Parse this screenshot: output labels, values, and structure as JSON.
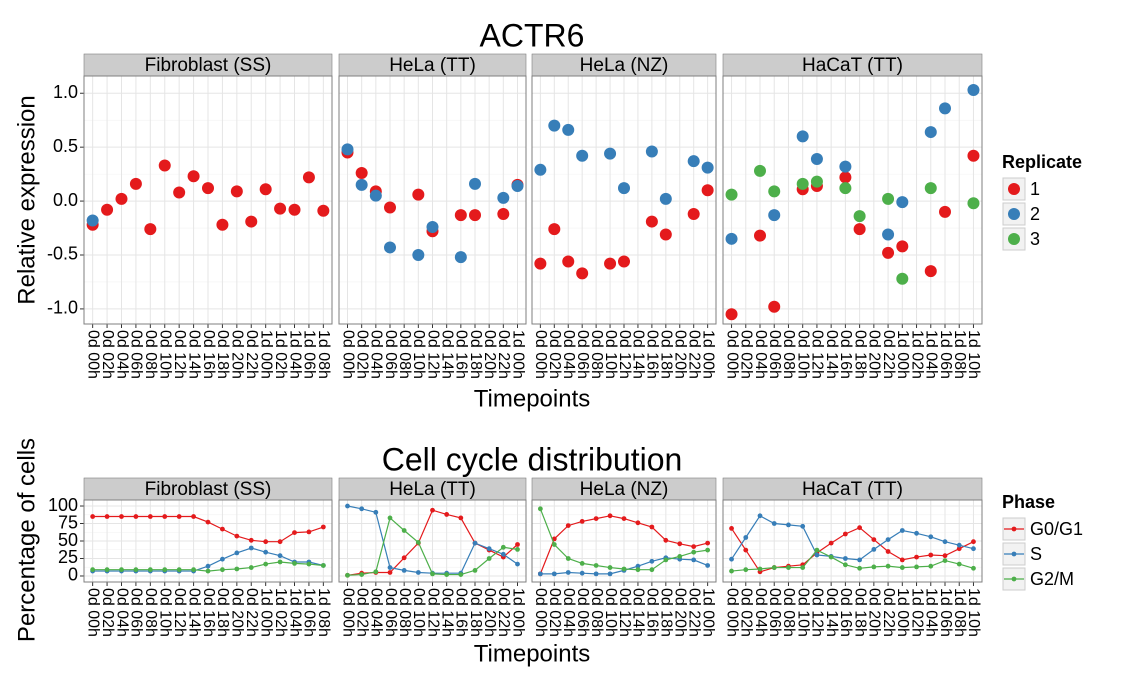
{
  "chart_data": [
    {
      "type": "scatter",
      "title": "ACTR6",
      "xlabel": "Timepoints",
      "ylabel": "Relative expression",
      "ylim": [
        -1.14,
        1.16
      ],
      "yticks": [
        {
          "value": -1,
          "label": "-1.0"
        },
        {
          "value": -0.5,
          "label": "-0.5"
        },
        {
          "value": 0,
          "label": "0.0"
        },
        {
          "value": 0.5,
          "label": "0.5"
        },
        {
          "value": 1,
          "label": "1.0"
        }
      ],
      "grid": true,
      "legend_title": "Replicate",
      "series": [
        {
          "name": "1",
          "color": "#e41a1c"
        },
        {
          "name": "2",
          "color": "#377eb8"
        },
        {
          "name": "3",
          "color": "#4daf4a"
        }
      ],
      "panels": [
        {
          "title": "Fibroblast (SS)",
          "categories": [
            "0d 00h",
            "0d 02h",
            "0d 04h",
            "0d 06h",
            "0d 08h",
            "0d 10h",
            "0d 12h",
            "0d 14h",
            "0d 16h",
            "0d 18h",
            "0d 20h",
            "0d 22h",
            "1d 00h",
            "1d 02h",
            "1d 04h",
            "1d 06h",
            "1d 08h"
          ],
          "values": [
            [
              -0.22,
              -0.08,
              0.02,
              0.16,
              -0.26,
              0.33,
              0.08,
              0.23,
              0.12,
              -0.22,
              0.09,
              -0.19,
              0.11,
              -0.07,
              -0.08,
              0.22,
              -0.09
            ],
            [
              -0.18,
              null,
              null,
              null,
              null,
              null,
              null,
              null,
              null,
              null,
              null,
              null,
              null,
              null,
              null,
              null,
              null
            ],
            [
              null,
              null,
              null,
              null,
              null,
              null,
              null,
              null,
              null,
              null,
              null,
              null,
              null,
              null,
              null,
              null,
              null
            ]
          ]
        },
        {
          "title": "HeLa (TT)",
          "categories": [
            "0d 00h",
            "0d 02h",
            "0d 04h",
            "0d 06h",
            "0d 08h",
            "0d 10h",
            "0d 12h",
            "0d 14h",
            "0d 16h",
            "0d 18h",
            "0d 20h",
            "0d 22h",
            "1d 00h"
          ],
          "values": [
            [
              0.45,
              0.26,
              0.09,
              -0.06,
              null,
              0.06,
              -0.28,
              null,
              -0.13,
              -0.13,
              null,
              -0.12,
              0.15
            ],
            [
              0.48,
              0.15,
              0.05,
              -0.43,
              null,
              -0.5,
              -0.24,
              null,
              -0.52,
              0.16,
              null,
              0.03,
              0.14
            ],
            [
              null,
              null,
              null,
              null,
              null,
              null,
              null,
              null,
              null,
              null,
              null,
              null,
              null
            ]
          ]
        },
        {
          "title": "HeLa (NZ)",
          "categories": [
            "0d 00h",
            "0d 02h",
            "0d 04h",
            "0d 06h",
            "0d 08h",
            "0d 10h",
            "0d 12h",
            "0d 14h",
            "0d 16h",
            "0d 18h",
            "0d 20h",
            "0d 22h",
            "1d 00h"
          ],
          "values": [
            [
              -0.58,
              -0.26,
              -0.56,
              -0.67,
              null,
              -0.58,
              -0.56,
              null,
              -0.19,
              -0.31,
              null,
              -0.12,
              0.1
            ],
            [
              0.29,
              0.7,
              0.66,
              0.42,
              null,
              0.44,
              0.12,
              null,
              0.46,
              0.02,
              null,
              0.37,
              0.31
            ],
            [
              null,
              null,
              null,
              null,
              null,
              null,
              null,
              null,
              null,
              null,
              null,
              null,
              null
            ]
          ]
        },
        {
          "title": "HaCaT (TT)",
          "categories": [
            "0d 00h",
            "0d 02h",
            "0d 04h",
            "0d 06h",
            "0d 08h",
            "0d 10h",
            "0d 12h",
            "0d 14h",
            "0d 16h",
            "0d 18h",
            "0d 20h",
            "0d 22h",
            "1d 00h",
            "1d 02h",
            "1d 04h",
            "1d 06h",
            "1d 08h",
            "1d 10h"
          ],
          "values": [
            [
              -1.05,
              null,
              -0.32,
              -0.98,
              null,
              0.11,
              0.14,
              null,
              0.22,
              -0.26,
              null,
              -0.48,
              -0.42,
              null,
              -0.65,
              -0.1,
              null,
              0.42
            ],
            [
              -0.35,
              null,
              null,
              -0.13,
              null,
              0.6,
              0.39,
              null,
              0.32,
              null,
              null,
              -0.31,
              -0.01,
              null,
              0.64,
              0.86,
              null,
              1.03
            ],
            [
              0.06,
              null,
              0.28,
              0.09,
              null,
              0.16,
              0.18,
              null,
              0.12,
              -0.14,
              null,
              0.02,
              -0.72,
              null,
              0.12,
              null,
              null,
              -0.02
            ]
          ]
        }
      ]
    },
    {
      "type": "line",
      "title": "Cell cycle distribution",
      "xlabel": "Timepoints",
      "ylabel": "Percentage of cells",
      "ylim": [
        -8.6,
        108.6
      ],
      "yticks": [
        0,
        25,
        50,
        75,
        100
      ],
      "grid": true,
      "legend_title": "Phase",
      "series": [
        {
          "name": "G0/G1",
          "color": "#e41a1c"
        },
        {
          "name": "S",
          "color": "#377eb8"
        },
        {
          "name": "G2/M",
          "color": "#4daf4a"
        }
      ],
      "panels": [
        {
          "title": "Fibroblast (SS)",
          "categories": [
            "0d 00h",
            "0d 02h",
            "0d 04h",
            "0d 06h",
            "0d 08h",
            "0d 10h",
            "0d 12h",
            "0d 14h",
            "0d 16h",
            "0d 18h",
            "0d 20h",
            "0d 22h",
            "1d 00h",
            "1d 02h",
            "1d 04h",
            "1d 06h",
            "1d 08h"
          ],
          "values": [
            [
              85,
              85,
              85,
              85,
              85,
              85,
              85,
              85,
              77,
              67,
              57,
              51,
              49,
              49,
              62,
              63,
              70
            ],
            [
              7,
              7,
              7,
              7,
              7,
              7,
              7,
              7,
              14,
              24,
              33,
              40,
              34,
              29,
              20,
              20,
              15
            ],
            [
              9,
              9,
              9,
              9,
              9,
              9,
              9,
              9,
              7,
              9,
              10,
              12,
              17,
              20,
              18,
              17,
              15
            ]
          ]
        },
        {
          "title": "HeLa (TT)",
          "categories": [
            "0d 00h",
            "0d 02h",
            "0d 04h",
            "0d 06h",
            "0d 08h",
            "0d 10h",
            "0d 12h",
            "0d 14h",
            "0d 16h",
            "0d 18h",
            "0d 20h",
            "0d 22h",
            "1d 00h"
          ],
          "values": [
            [
              1,
              4,
              5,
              5,
              26,
              47,
              94,
              88,
              83,
              47,
              37,
              27,
              45
            ],
            [
              100,
              96,
              91,
              12,
              8,
              5,
              4,
              4,
              4,
              47,
              39,
              31,
              17
            ],
            [
              1,
              2,
              6,
              83,
              65,
              48,
              3,
              2,
              2,
              8,
              25,
              41,
              38
            ]
          ]
        },
        {
          "title": "HeLa (NZ)",
          "categories": [
            "0d 00h",
            "0d 02h",
            "0d 04h",
            "0d 06h",
            "0d 08h",
            "0d 10h",
            "0d 12h",
            "0d 14h",
            "0d 16h",
            "0d 18h",
            "0d 20h",
            "0d 22h",
            "1d 00h"
          ],
          "values": [
            [
              3,
              53,
              72,
              78,
              82,
              86,
              82,
              76,
              70,
              51,
              46,
              42,
              47
            ],
            [
              3,
              3,
              5,
              4,
              3,
              3,
              8,
              14,
              21,
              26,
              24,
              23,
              15
            ],
            [
              96,
              45,
              25,
              18,
              15,
              12,
              10,
              9,
              9,
              23,
              28,
              34,
              37
            ]
          ]
        },
        {
          "title": "HaCaT (TT)",
          "categories": [
            "0d 00h",
            "0d 02h",
            "0d 04h",
            "0d 06h",
            "0d 08h",
            "0d 10h",
            "0d 12h",
            "0d 14h",
            "0d 16h",
            "0d 18h",
            "0d 20h",
            "0d 22h",
            "1d 00h",
            "1d 02h",
            "1d 04h",
            "1d 06h",
            "1d 08h",
            "1d 10h"
          ],
          "values": [
            [
              68,
              37,
              6,
              12,
              14,
              16,
              33,
              47,
              60,
              69,
              52,
              35,
              23,
              27,
              30,
              29,
              39,
              49
            ],
            [
              24,
              55,
              86,
              75,
              73,
              71,
              30,
              28,
              25,
              23,
              38,
              52,
              65,
              61,
              56,
              49,
              44,
              39
            ],
            [
              7,
              9,
              10,
              12,
              12,
              12,
              37,
              27,
              16,
              11,
              13,
              14,
              12,
              13,
              14,
              22,
              17,
              11
            ]
          ]
        }
      ]
    }
  ]
}
